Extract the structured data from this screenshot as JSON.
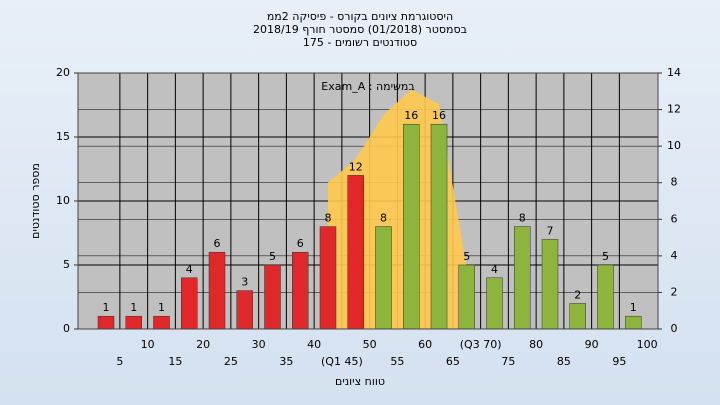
{
  "chart_data": {
    "type": "bar",
    "title": "היסטוגרמת ציונים בקורס - פיסיקה 2ממ",
    "subtitle": [
      "בסמסטר  (01/2018)  סמסטר חורף 2018/19",
      "סטודנטים רשומים - 175"
    ],
    "annotation": "במשימה : Exam_A",
    "y_label": "מספר סטודנטים",
    "x_label": "טווח ציונים",
    "categories": [
      "5",
      "10",
      "15",
      "20",
      "25",
      "30",
      "35",
      "40",
      "(Q1 45)",
      "50",
      "55",
      "60",
      "65",
      "(Q3 70)",
      "75",
      "80",
      "85",
      "90",
      "95",
      "100"
    ],
    "series": [
      {
        "values": [
          1,
          1,
          1,
          4,
          6,
          3,
          5,
          6,
          8,
          12,
          8,
          16,
          16,
          5,
          4,
          8,
          7,
          2,
          5,
          1
        ],
        "colors": [
          "#e0282a",
          "#e0282a",
          "#e0282a",
          "#e0282a",
          "#e0282a",
          "#e0282a",
          "#e0282a",
          "#e0282a",
          "#e0282a",
          "#e0282a",
          "#8db43c",
          "#8db43c",
          "#8db43c",
          "#8db43c",
          "#8db43c",
          "#8db43c",
          "#8db43c",
          "#8db43c",
          "#8db43c",
          "#8db43c"
        ]
      },
      {
        "type": "area",
        "axis": "y2",
        "color": "#ffc94d",
        "values": [
          null,
          null,
          null,
          null,
          null,
          null,
          null,
          null,
          8,
          9.3,
          11.7,
          13.1,
          12.3,
          3.3,
          null,
          null,
          null,
          null,
          null,
          null
        ]
      }
    ],
    "ylim": [
      0,
      20
    ],
    "yticks": [
      0,
      5,
      10,
      15,
      20
    ],
    "y2lim": [
      0,
      14
    ],
    "y2ticks": [
      0,
      2,
      4,
      6,
      8,
      10,
      12,
      14
    ],
    "grid": true
  }
}
